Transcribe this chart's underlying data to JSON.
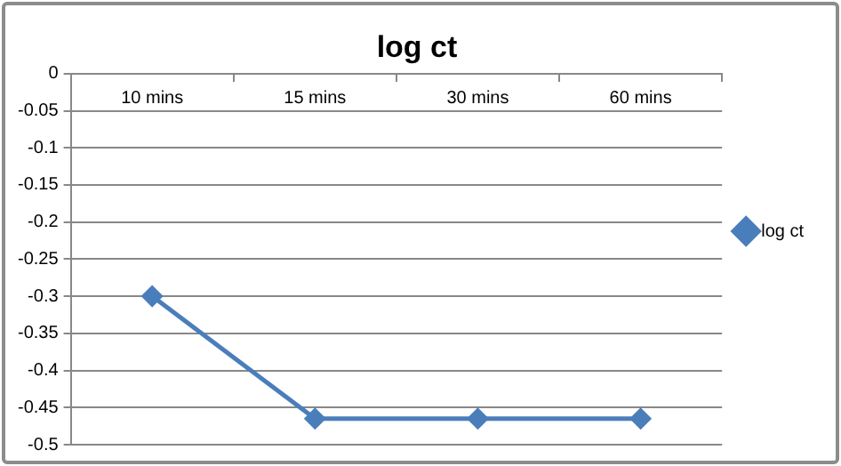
{
  "chart_data": {
    "type": "line",
    "title": "log ct",
    "categories": [
      "10 mins",
      "15 mins",
      "30 mins",
      "60 mins"
    ],
    "series": [
      {
        "name": "log ct",
        "color": "#4a7ebb",
        "values": [
          -0.3,
          -0.465,
          -0.465,
          -0.465
        ]
      }
    ],
    "ylim": [
      -0.5,
      0
    ],
    "yticks": [
      0,
      -0.05,
      -0.1,
      -0.15,
      -0.2,
      -0.25,
      -0.3,
      -0.35,
      -0.4,
      -0.45,
      -0.5
    ],
    "grid": "y",
    "legend": "right",
    "marker": "diamond",
    "line_style": "solid"
  }
}
